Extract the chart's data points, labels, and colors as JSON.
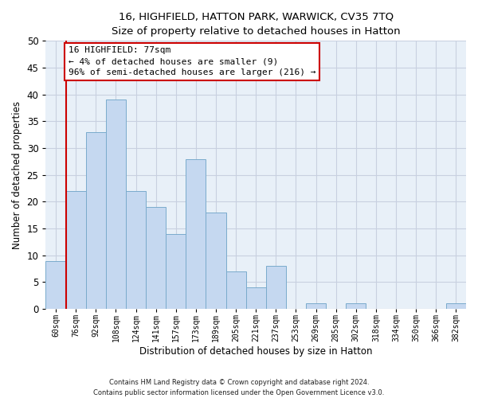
{
  "title": "16, HIGHFIELD, HATTON PARK, WARWICK, CV35 7TQ",
  "subtitle": "Size of property relative to detached houses in Hatton",
  "xlabel": "Distribution of detached houses by size in Hatton",
  "ylabel": "Number of detached properties",
  "bar_labels": [
    "60sqm",
    "76sqm",
    "92sqm",
    "108sqm",
    "124sqm",
    "141sqm",
    "157sqm",
    "173sqm",
    "189sqm",
    "205sqm",
    "221sqm",
    "237sqm",
    "253sqm",
    "269sqm",
    "285sqm",
    "302sqm",
    "318sqm",
    "334sqm",
    "350sqm",
    "366sqm",
    "382sqm"
  ],
  "bar_values": [
    9,
    22,
    33,
    39,
    22,
    19,
    14,
    28,
    18,
    7,
    4,
    8,
    0,
    1,
    0,
    1,
    0,
    0,
    0,
    0,
    1
  ],
  "bar_color": "#c5d8f0",
  "bar_edge_color": "#7aabcc",
  "ylim_max": 50,
  "yticks": [
    0,
    5,
    10,
    15,
    20,
    25,
    30,
    35,
    40,
    45,
    50
  ],
  "vline_x": 0.5,
  "vline_color": "#cc0000",
  "annotation_line1": "16 HIGHFIELD: 77sqm",
  "annotation_line2": "← 4% of detached houses are smaller (9)",
  "annotation_line3": "96% of semi-detached houses are larger (216) →",
  "ann_box_facecolor": "#ffffff",
  "ann_box_edgecolor": "#cc0000",
  "bg_color": "#e8f0f8",
  "grid_color": "#c8d0e0",
  "footer_line1": "Contains HM Land Registry data © Crown copyright and database right 2024.",
  "footer_line2": "Contains public sector information licensed under the Open Government Licence v3.0."
}
